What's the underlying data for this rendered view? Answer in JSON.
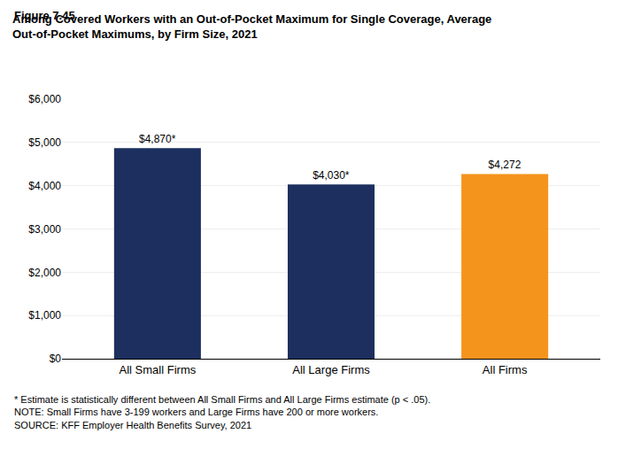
{
  "chart_data": {
    "type": "bar",
    "title": "Among Covered Workers with an Out-of-Pocket Maximum for Single Coverage, Average\nOut-of-Pocket Maximums, by Firm Size, 2021",
    "annotations": [
      "Figure 7.45",
      "* Estimate is statistically different between All Small Firms and All Large Firms estimate (p < .05).",
      "NOTE: Small Firms have 3-199 workers and Large Firms have 200 or more workers.",
      "SOURCE: KFF Employer Health Benefits Survey, 2021"
    ],
    "categories": [
      "All Small Firms",
      "All Large Firms",
      "All Firms"
    ],
    "values": [
      4870,
      4030,
      4272
    ],
    "value_labels": [
      "$4,870*",
      "$4,030*",
      "$4,272"
    ],
    "data_labels": true,
    "colors": [
      "#1c2f5e",
      "#1c2f5e",
      "#f5941d"
    ],
    "ylim": [
      0,
      6000
    ],
    "yticks": [
      {
        "value": 0,
        "label": "$0"
      },
      {
        "value": 1000,
        "label": "$1,000"
      },
      {
        "value": 2000,
        "label": "$2,000"
      },
      {
        "value": 3000,
        "label": "$3,000"
      },
      {
        "value": 4000,
        "label": "$4,000"
      },
      {
        "value": 5000,
        "label": "$5,000"
      },
      {
        "value": 6000,
        "label": "$6,000"
      }
    ],
    "grid": true
  }
}
